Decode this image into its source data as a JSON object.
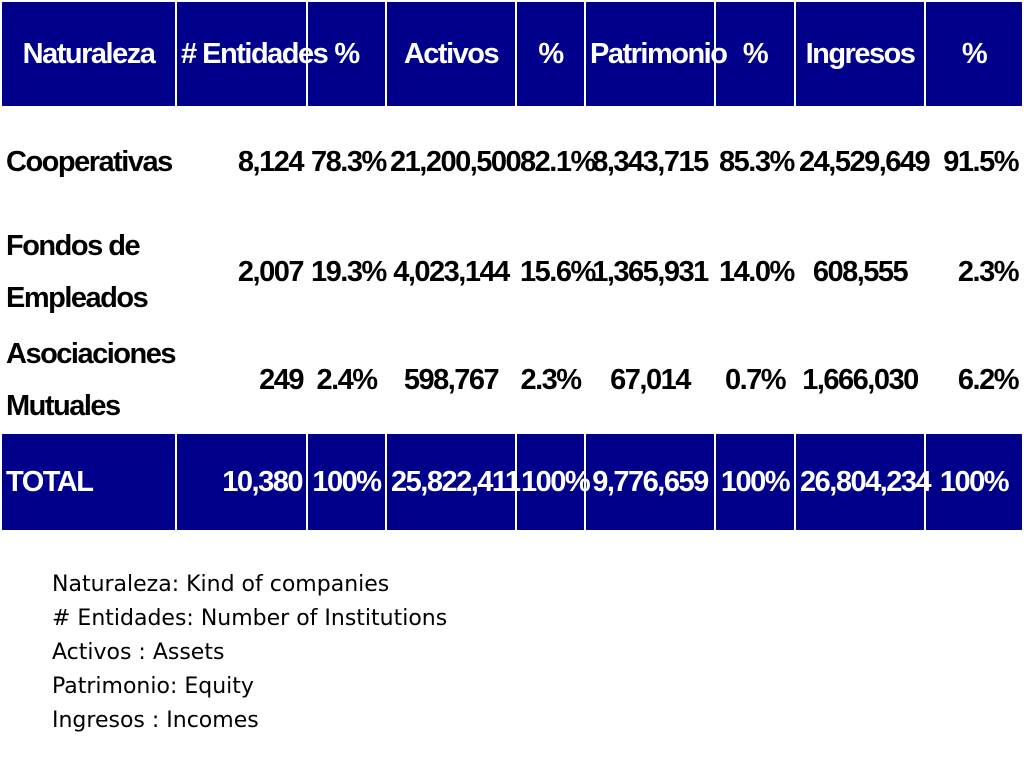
{
  "table": {
    "headers": [
      "Naturaleza",
      "# Entidades",
      "%",
      "Activos",
      "%",
      "Patrimonio",
      "%",
      "Ingresos",
      "%"
    ],
    "rows": [
      {
        "name": "Cooperativas",
        "entidades": "8,124",
        "entidades_pct": "78.3%",
        "activos": "21,200,500",
        "activos_pct": "82.1%",
        "patrimonio": "8,343,715",
        "patrimonio_pct": "85.3%",
        "ingresos": "24,529,649",
        "ingresos_pct": "91.5%"
      },
      {
        "name": "Fondos de Empleados",
        "entidades": "2,007",
        "entidades_pct": "19.3%",
        "activos": "4,023,144",
        "activos_pct": "15.6%",
        "patrimonio": "1,365,931",
        "patrimonio_pct": "14.0%",
        "ingresos": "608,555",
        "ingresos_pct": "2.3%"
      },
      {
        "name": "Asociaciones Mutuales",
        "entidades": "249",
        "entidades_pct": "2.4%",
        "activos": "598,767",
        "activos_pct": "2.3%",
        "patrimonio": "67,014",
        "patrimonio_pct": "0.7%",
        "ingresos": "1,666,030",
        "ingresos_pct": "6.2%"
      }
    ],
    "total": {
      "name": "TOTAL",
      "entidades": "10,380",
      "entidades_pct": "100%",
      "activos": "25,822,411",
      "activos_pct": "100%",
      "patrimonio": "9,776,659",
      "patrimonio_pct": "100%",
      "ingresos": "26,804,234",
      "ingresos_pct": "100%"
    }
  },
  "legend": [
    "Naturaleza: Kind of companies",
    "# Entidades: Number of Institutions",
    "Activos : Assets",
    "Patrimonio: Equity",
    "Ingresos : Incomes"
  ],
  "colors": {
    "header_bg": "#00008b",
    "header_text": "#ffffff",
    "body_text": "#000000"
  }
}
